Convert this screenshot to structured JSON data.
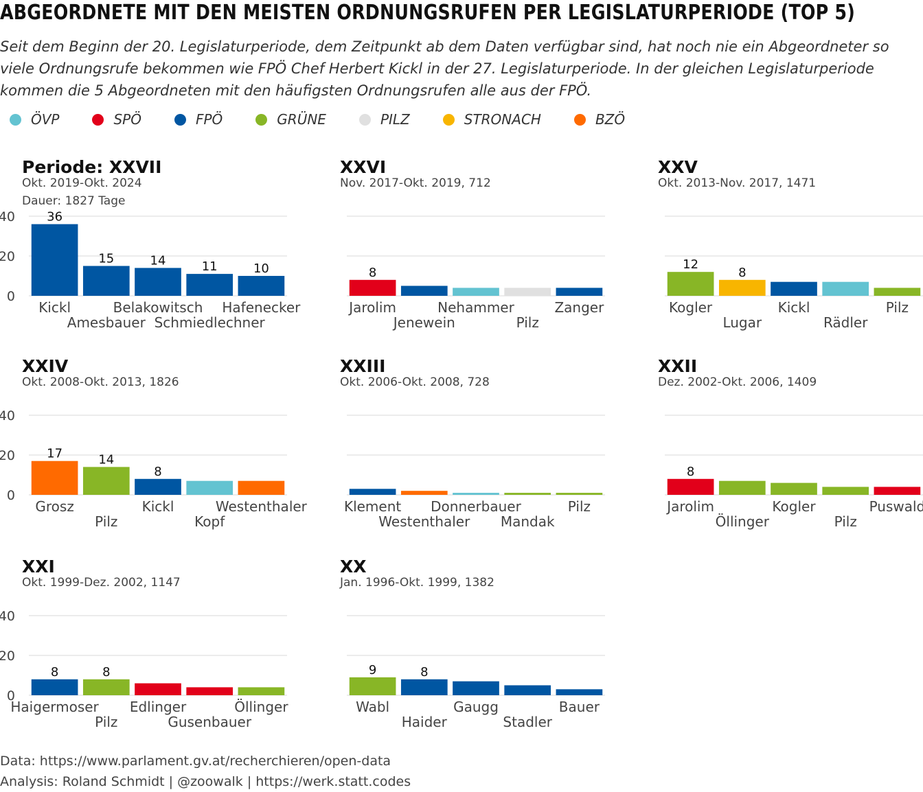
{
  "title": "ABGEORDNETE MIT DEN MEISTEN ORDNUNGSRUFEN PER LEGISLATURPERIODE (TOP 5)",
  "subtitle": "Seit dem Beginn der 20. Legislaturperiode, dem Zeitpunkt ab dem Daten verfügbar sind, hat noch nie ein Abgeordneter so viele Ordnungsrufe bekommen wie FPÖ Chef Herbert Kickl in der 27. Legislaturperiode. In der gleichen Legislaturperiode kommen die 5 Abgeordneten mit den häufigsten Ordnungsrufen alle aus der FPÖ.",
  "legend": [
    {
      "label": "ÖVP",
      "color": "#63C3D1"
    },
    {
      "label": "SPÖ",
      "color": "#E2001A"
    },
    {
      "label": "FPÖ",
      "color": "#0056A2"
    },
    {
      "label": "GRÜNE",
      "color": "#88B626"
    },
    {
      "label": "PILZ",
      "color": "#E0E0E0"
    },
    {
      "label": "STRONACH",
      "color": "#F8B500"
    },
    {
      "label": "BZÖ",
      "color": "#FF6A00"
    }
  ],
  "caption": {
    "line1": "Data: https://www.parlament.gv.at/recherchieren/open-data",
    "line2": "Analysis: Roland Schmidt | @zoowalk | https://werk.statt.codes"
  },
  "chart_data": [
    {
      "type": "bar",
      "title": "Periode: XXVII",
      "subtitle": "Okt. 2019-Okt. 2024",
      "subtitle2": "Dauer: 1827 Tage",
      "ylim": [
        0,
        40
      ],
      "yticks": [
        0,
        20,
        40
      ],
      "categories": [
        "Kickl",
        "Amesbauer",
        "Belakowitsch",
        "Schmiedlechner",
        "Hafenecker"
      ],
      "values": [
        36,
        15,
        14,
        11,
        10
      ],
      "parties": [
        "FPÖ",
        "FPÖ",
        "FPÖ",
        "FPÖ",
        "FPÖ"
      ],
      "labels": [
        "36",
        "15",
        "14",
        "11",
        "10"
      ]
    },
    {
      "type": "bar",
      "title": "XXVI",
      "subtitle": "Nov. 2017-Okt. 2019, 712",
      "ylim": [
        0,
        40
      ],
      "yticks": [
        0,
        20,
        40
      ],
      "categories": [
        "Jarolim",
        "Jenewein",
        "Nehammer",
        "Pilz",
        "Zanger"
      ],
      "values": [
        8,
        5,
        4,
        4,
        4
      ],
      "parties": [
        "SPÖ",
        "FPÖ",
        "ÖVP",
        "PILZ",
        "FPÖ"
      ],
      "labels": [
        "8",
        "",
        "",
        "",
        ""
      ]
    },
    {
      "type": "bar",
      "title": "XXV",
      "subtitle": "Okt. 2013-Nov. 2017, 1471",
      "ylim": [
        0,
        40
      ],
      "yticks": [
        0,
        20,
        40
      ],
      "categories": [
        "Kogler",
        "Lugar",
        "Kickl",
        "Rädler",
        "Pilz"
      ],
      "values": [
        12,
        8,
        7,
        7,
        4
      ],
      "parties": [
        "GRÜNE",
        "STRONACH",
        "FPÖ",
        "ÖVP",
        "GRÜNE"
      ],
      "labels": [
        "12",
        "8",
        "",
        "",
        ""
      ]
    },
    {
      "type": "bar",
      "title": "XXIV",
      "subtitle": "Okt. 2008-Okt. 2013, 1826",
      "ylim": [
        0,
        40
      ],
      "yticks": [
        0,
        20,
        40
      ],
      "categories": [
        "Grosz",
        "Pilz",
        "Kickl",
        "Kopf",
        "Westenthaler"
      ],
      "values": [
        17,
        14,
        8,
        7,
        7
      ],
      "parties": [
        "BZÖ",
        "GRÜNE",
        "FPÖ",
        "ÖVP",
        "BZÖ"
      ],
      "labels": [
        "17",
        "14",
        "8",
        "",
        ""
      ]
    },
    {
      "type": "bar",
      "title": "XXIII",
      "subtitle": "Okt. 2006-Okt. 2008, 728",
      "ylim": [
        0,
        40
      ],
      "yticks": [
        0,
        20,
        40
      ],
      "categories": [
        "Klement",
        "Westenthaler",
        "Donnerbauer",
        "Mandak",
        "Pilz"
      ],
      "values": [
        3,
        2,
        1,
        1,
        1
      ],
      "parties": [
        "FPÖ",
        "BZÖ",
        "ÖVP",
        "GRÜNE",
        "GRÜNE"
      ],
      "labels": [
        "",
        "",
        "",
        "",
        ""
      ]
    },
    {
      "type": "bar",
      "title": "XXII",
      "subtitle": "Dez. 2002-Okt. 2006, 1409",
      "ylim": [
        0,
        40
      ],
      "yticks": [
        0,
        20,
        40
      ],
      "categories": [
        "Jarolim",
        "Öllinger",
        "Kogler",
        "Pilz",
        "Puswald"
      ],
      "values": [
        8,
        7,
        6,
        4,
        4
      ],
      "parties": [
        "SPÖ",
        "GRÜNE",
        "GRÜNE",
        "GRÜNE",
        "SPÖ"
      ],
      "labels": [
        "8",
        "",
        "",
        "",
        ""
      ]
    },
    {
      "type": "bar",
      "title": "XXI",
      "subtitle": "Okt. 1999-Dez. 2002, 1147",
      "ylim": [
        0,
        40
      ],
      "yticks": [
        0,
        20,
        40
      ],
      "categories": [
        "Haigermoser",
        "Pilz",
        "Edlinger",
        "Gusenbauer",
        "Öllinger"
      ],
      "values": [
        8,
        8,
        6,
        4,
        4
      ],
      "parties": [
        "FPÖ",
        "GRÜNE",
        "SPÖ",
        "SPÖ",
        "GRÜNE"
      ],
      "labels": [
        "8",
        "8",
        "",
        "",
        ""
      ]
    },
    {
      "type": "bar",
      "title": "XX",
      "subtitle": "Jan. 1996-Okt. 1999, 1382",
      "ylim": [
        0,
        40
      ],
      "yticks": [
        0,
        20,
        40
      ],
      "categories": [
        "Wabl",
        "Haider",
        "Gaugg",
        "Stadler",
        "Bauer"
      ],
      "values": [
        9,
        8,
        7,
        5,
        3
      ],
      "parties": [
        "GRÜNE",
        "FPÖ",
        "FPÖ",
        "FPÖ",
        "FPÖ"
      ],
      "labels": [
        "9",
        "8",
        "",
        "",
        ""
      ]
    }
  ]
}
